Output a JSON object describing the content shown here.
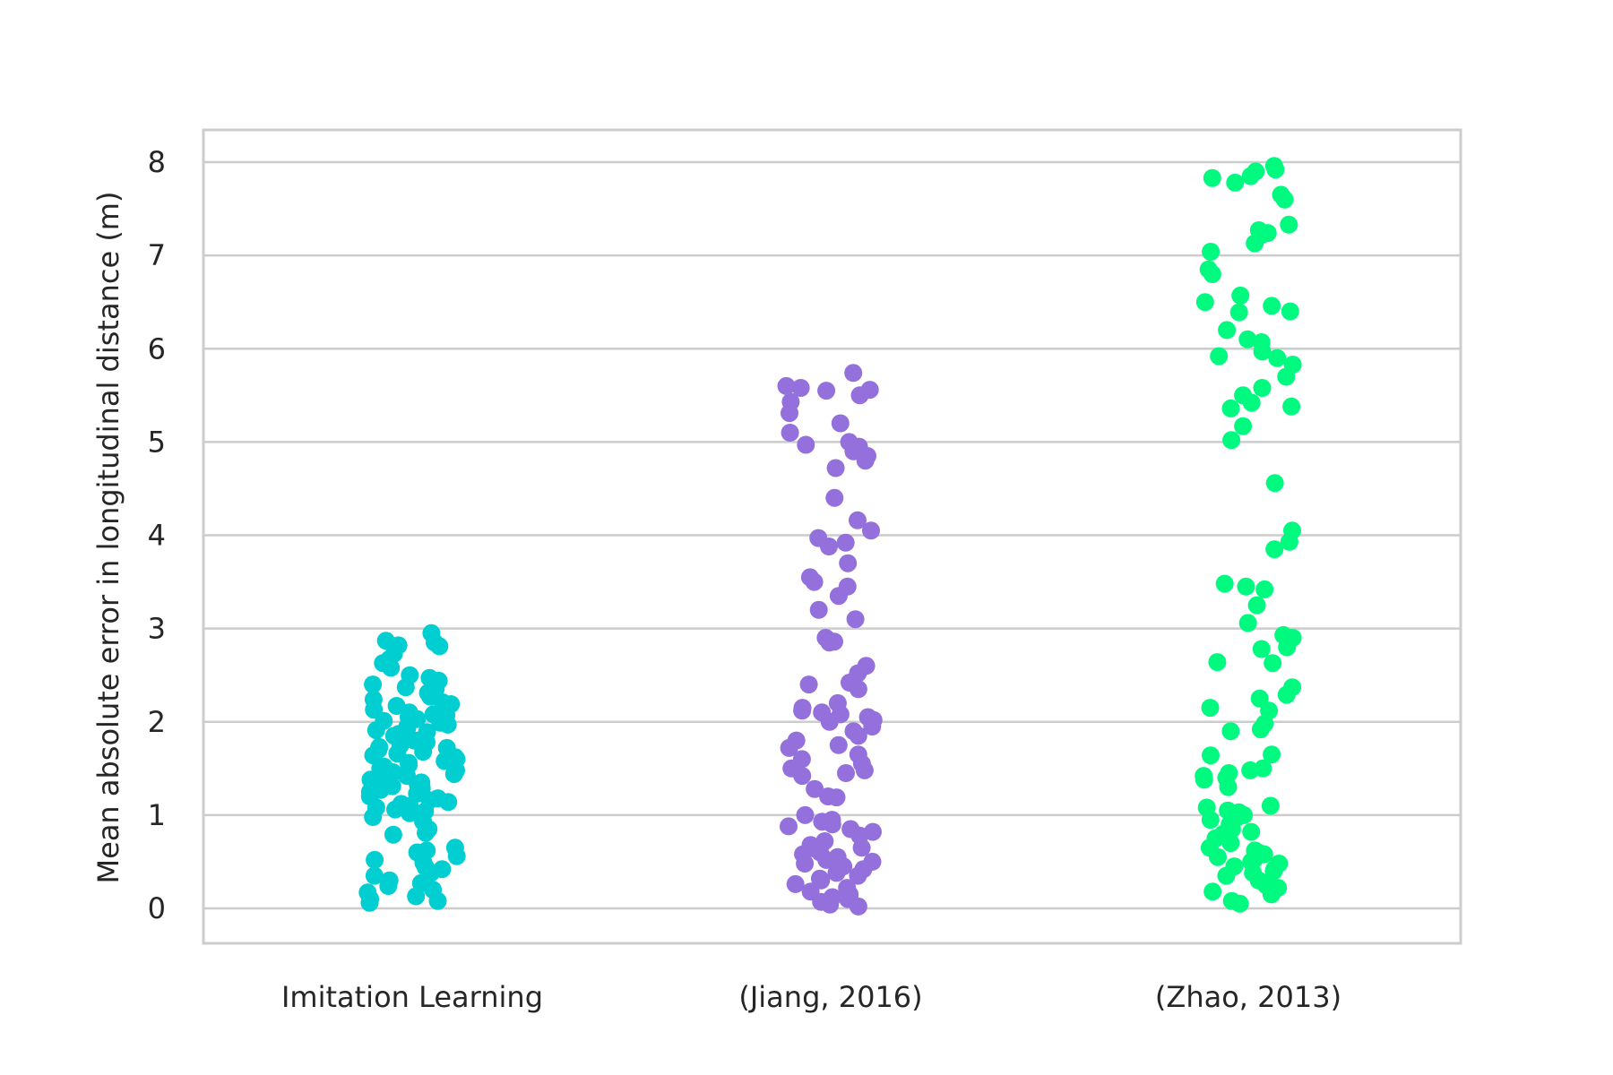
{
  "chart_data": {
    "type": "scatter",
    "title": "",
    "xlabel": "",
    "ylabel": "Mean absolute error in longitudinal distance (m)",
    "ylim": [
      -0.4,
      8.35
    ],
    "y_ticks": [
      0,
      1,
      2,
      3,
      4,
      5,
      6,
      7,
      8
    ],
    "grid": "horizontal",
    "categories": [
      "Imitation Learning",
      "(Jiang, 2016)",
      "(Zhao, 2013)"
    ],
    "colors": [
      "#00ced1",
      "#9370db",
      "#00fa7f"
    ],
    "series": [
      {
        "name": "Imitation Learning",
        "values": [
          2.95,
          2.87,
          2.85,
          2.82,
          2.81,
          2.73,
          2.67,
          2.63,
          2.58,
          2.5,
          2.47,
          2.44,
          2.4,
          2.37,
          2.35,
          2.31,
          2.27,
          2.24,
          2.21,
          2.19,
          2.17,
          2.13,
          2.1,
          2.08,
          2.07,
          2.05,
          2.03,
          2.01,
          1.99,
          1.97,
          1.95,
          1.93,
          1.91,
          1.89,
          1.87,
          1.85,
          1.82,
          1.8,
          1.78,
          1.75,
          1.73,
          1.72,
          1.7,
          1.68,
          1.66,
          1.64,
          1.62,
          1.6,
          1.58,
          1.56,
          1.54,
          1.52,
          1.5,
          1.48,
          1.46,
          1.44,
          1.42,
          1.4,
          1.38,
          1.35,
          1.33,
          1.31,
          1.29,
          1.27,
          1.25,
          1.23,
          1.2,
          1.18,
          1.16,
          1.14,
          1.12,
          1.1,
          1.08,
          1.06,
          1.04,
          1.02,
          0.98,
          0.93,
          0.85,
          0.81,
          0.79,
          0.65,
          0.62,
          0.6,
          0.56,
          0.52,
          0.49,
          0.44,
          0.42,
          0.38,
          0.35,
          0.3,
          0.27,
          0.24,
          0.2,
          0.17,
          0.13,
          0.1,
          0.08,
          0.06
        ]
      },
      {
        "name": "(Jiang, 2016)",
        "values": [
          5.74,
          5.6,
          5.58,
          5.56,
          5.55,
          5.5,
          5.43,
          5.31,
          5.2,
          5.1,
          5.0,
          4.97,
          4.95,
          4.9,
          4.85,
          4.8,
          4.72,
          4.4,
          4.16,
          4.05,
          3.97,
          3.92,
          3.88,
          3.7,
          3.55,
          3.5,
          3.45,
          3.35,
          3.2,
          3.1,
          2.9,
          2.87,
          2.86,
          2.85,
          2.6,
          2.52,
          2.42,
          2.4,
          2.35,
          2.2,
          2.15,
          2.12,
          2.1,
          2.08,
          2.05,
          2.02,
          2.0,
          1.95,
          1.9,
          1.85,
          1.8,
          1.75,
          1.72,
          1.65,
          1.6,
          1.55,
          1.5,
          1.48,
          1.45,
          1.42,
          1.28,
          1.2,
          1.19,
          1.0,
          0.95,
          0.93,
          0.9,
          0.88,
          0.85,
          0.82,
          0.78,
          0.72,
          0.68,
          0.65,
          0.62,
          0.6,
          0.58,
          0.55,
          0.52,
          0.5,
          0.48,
          0.45,
          0.42,
          0.38,
          0.35,
          0.32,
          0.3,
          0.26,
          0.22,
          0.18,
          0.15,
          0.12,
          0.1,
          0.07,
          0.04,
          0.02
        ]
      },
      {
        "name": "(Zhao, 2013)",
        "values": [
          7.96,
          7.92,
          7.9,
          7.85,
          7.83,
          7.78,
          7.65,
          7.6,
          7.33,
          7.27,
          7.24,
          7.22,
          7.13,
          7.04,
          6.85,
          6.8,
          6.57,
          6.5,
          6.46,
          6.4,
          6.39,
          6.2,
          6.1,
          6.07,
          5.97,
          5.92,
          5.9,
          5.83,
          5.7,
          5.58,
          5.5,
          5.42,
          5.38,
          5.36,
          5.17,
          5.02,
          4.56,
          4.05,
          3.93,
          3.85,
          3.48,
          3.45,
          3.42,
          3.25,
          3.06,
          2.93,
          2.9,
          2.8,
          2.78,
          2.64,
          2.63,
          2.37,
          2.29,
          2.25,
          2.15,
          2.12,
          1.98,
          1.92,
          1.9,
          1.65,
          1.64,
          1.5,
          1.48,
          1.45,
          1.42,
          1.4,
          1.38,
          1.3,
          1.1,
          1.08,
          1.05,
          1.03,
          1.0,
          0.98,
          0.95,
          0.9,
          0.85,
          0.82,
          0.8,
          0.78,
          0.75,
          0.7,
          0.65,
          0.62,
          0.6,
          0.58,
          0.55,
          0.52,
          0.5,
          0.48,
          0.45,
          0.42,
          0.4,
          0.38,
          0.35,
          0.3,
          0.25,
          0.22,
          0.18,
          0.15,
          0.08,
          0.05
        ]
      }
    ]
  }
}
